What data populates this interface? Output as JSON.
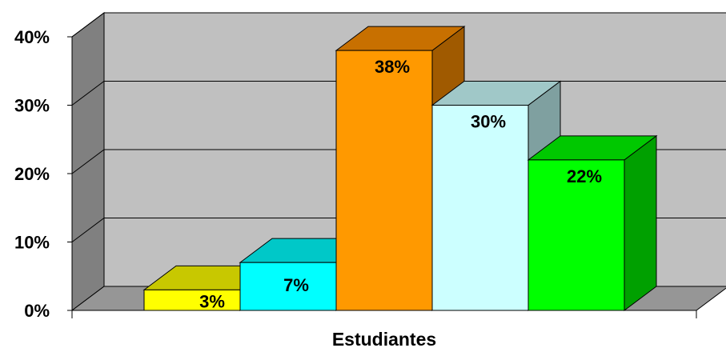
{
  "chart_data": {
    "type": "bar",
    "title": "",
    "xlabel": "Estudiantes",
    "ylabel": "",
    "ylim": [
      0,
      40
    ],
    "y_ticks": [
      0,
      10,
      20,
      30,
      40
    ],
    "y_tick_labels": [
      "0%",
      "10%",
      "20%",
      "30%",
      "40%"
    ],
    "grid": true,
    "legend": "none",
    "series": [
      {
        "value": 3,
        "label": "3%",
        "color": "#ffff00",
        "top_color": "#c8c800",
        "side_color": "#a0a000"
      },
      {
        "value": 7,
        "label": "7%",
        "color": "#00ffff",
        "top_color": "#00c8c8",
        "side_color": "#00a0a0"
      },
      {
        "value": 38,
        "label": "38%",
        "color": "#ff9900",
        "top_color": "#c87000",
        "side_color": "#a05a00"
      },
      {
        "value": 30,
        "label": "30%",
        "color": "#ccffff",
        "top_color": "#a0c8c8",
        "side_color": "#7fa0a0"
      },
      {
        "value": 22,
        "label": "22%",
        "color": "#00ff00",
        "top_color": "#00c800",
        "side_color": "#00a000"
      }
    ],
    "colors": {
      "wall": "#c0c0c0",
      "side_wall": "#808080",
      "floor": "#969696",
      "gridline": "#000000"
    }
  }
}
